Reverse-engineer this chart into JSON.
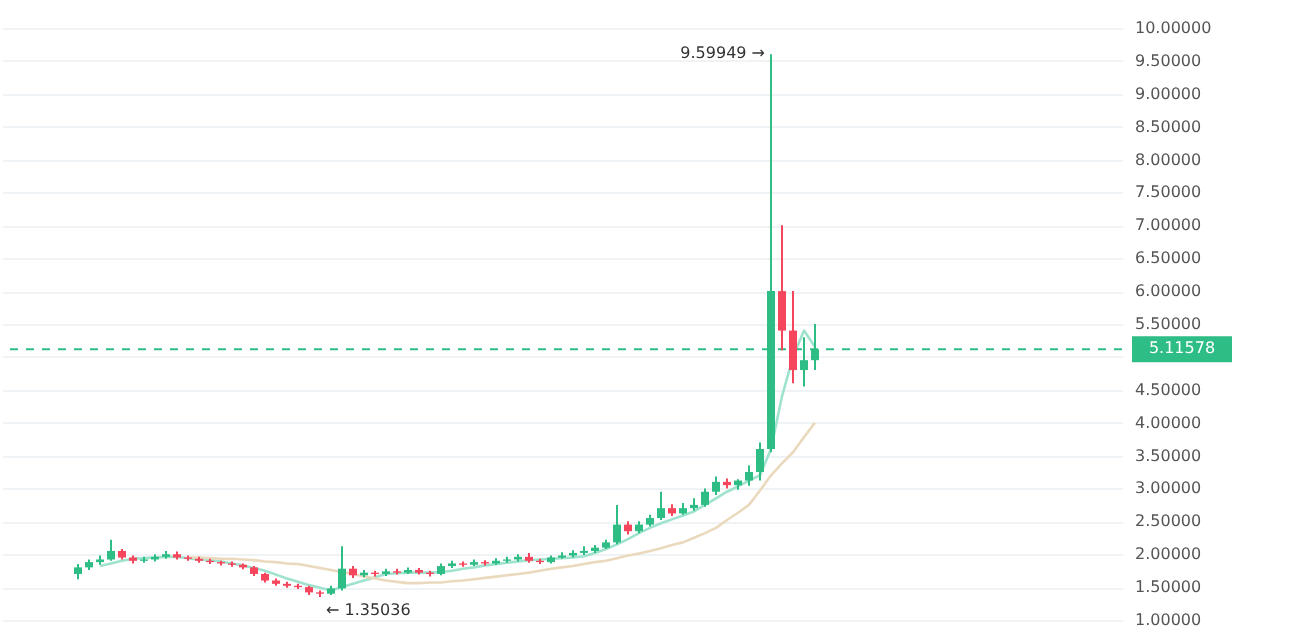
{
  "chart_data": {
    "type": "candlestick",
    "categories": [
      null,
      null,
      null,
      null,
      null,
      null,
      null,
      null,
      null,
      null,
      null,
      null,
      null,
      null,
      null,
      null,
      null,
      null,
      null,
      null,
      null,
      null,
      null,
      null,
      null,
      null,
      null,
      null,
      null,
      null,
      null,
      null,
      null,
      null,
      null,
      null,
      null,
      null,
      null,
      null,
      null,
      null,
      null,
      null,
      null,
      null,
      null,
      null,
      null,
      null,
      null,
      null,
      null,
      null,
      null,
      null,
      null,
      null,
      null,
      null,
      null,
      null,
      null,
      null,
      null,
      null,
      null,
      null
    ],
    "ohlc": [
      [
        1.7,
        1.85,
        1.62,
        1.8
      ],
      [
        1.8,
        1.92,
        1.76,
        1.88
      ],
      [
        1.88,
        1.98,
        1.84,
        1.92
      ],
      [
        1.92,
        2.22,
        1.9,
        2.05
      ],
      [
        2.05,
        2.08,
        1.92,
        1.95
      ],
      [
        1.95,
        1.98,
        1.86,
        1.9
      ],
      [
        1.9,
        1.96,
        1.87,
        1.92
      ],
      [
        1.92,
        2.0,
        1.89,
        1.96
      ],
      [
        1.96,
        2.05,
        1.93,
        2.0
      ],
      [
        2.0,
        2.04,
        1.92,
        1.95
      ],
      [
        1.95,
        1.98,
        1.9,
        1.93
      ],
      [
        1.93,
        1.96,
        1.87,
        1.9
      ],
      [
        1.9,
        1.93,
        1.85,
        1.88
      ],
      [
        1.88,
        1.9,
        1.83,
        1.86
      ],
      [
        1.86,
        1.89,
        1.81,
        1.84
      ],
      [
        1.84,
        1.86,
        1.77,
        1.8
      ],
      [
        1.8,
        1.82,
        1.67,
        1.7
      ],
      [
        1.7,
        1.72,
        1.57,
        1.6
      ],
      [
        1.6,
        1.63,
        1.52,
        1.55
      ],
      [
        1.55,
        1.58,
        1.49,
        1.52
      ],
      [
        1.52,
        1.55,
        1.47,
        1.5
      ],
      [
        1.5,
        1.52,
        1.38,
        1.42
      ],
      [
        1.42,
        1.45,
        1.35036,
        1.4
      ],
      [
        1.4,
        1.52,
        1.38,
        1.48
      ],
      [
        1.48,
        2.12,
        1.45,
        1.78
      ],
      [
        1.78,
        1.82,
        1.64,
        1.68
      ],
      [
        1.68,
        1.76,
        1.65,
        1.72
      ],
      [
        1.72,
        1.75,
        1.66,
        1.7
      ],
      [
        1.7,
        1.78,
        1.67,
        1.74
      ],
      [
        1.74,
        1.78,
        1.69,
        1.72
      ],
      [
        1.72,
        1.8,
        1.7,
        1.76
      ],
      [
        1.76,
        1.79,
        1.69,
        1.72
      ],
      [
        1.72,
        1.75,
        1.66,
        1.7
      ],
      [
        1.7,
        1.86,
        1.68,
        1.82
      ],
      [
        1.82,
        1.9,
        1.79,
        1.86
      ],
      [
        1.86,
        1.89,
        1.81,
        1.84
      ],
      [
        1.84,
        1.92,
        1.82,
        1.88
      ],
      [
        1.88,
        1.91,
        1.83,
        1.86
      ],
      [
        1.86,
        1.94,
        1.84,
        1.9
      ],
      [
        1.9,
        1.96,
        1.87,
        1.92
      ],
      [
        1.92,
        2.0,
        1.89,
        1.96
      ],
      [
        1.96,
        2.02,
        1.87,
        1.9
      ],
      [
        1.9,
        1.93,
        1.85,
        1.88
      ],
      [
        1.88,
        1.98,
        1.86,
        1.95
      ],
      [
        1.95,
        2.03,
        1.93,
        1.98
      ],
      [
        1.98,
        2.06,
        1.95,
        2.02
      ],
      [
        2.02,
        2.12,
        1.99,
        2.05
      ],
      [
        2.05,
        2.14,
        2.02,
        2.1
      ],
      [
        2.1,
        2.22,
        2.08,
        2.18
      ],
      [
        2.18,
        2.75,
        2.15,
        2.45
      ],
      [
        2.45,
        2.5,
        2.3,
        2.35
      ],
      [
        2.35,
        2.5,
        2.32,
        2.45
      ],
      [
        2.45,
        2.6,
        2.42,
        2.55
      ],
      [
        2.55,
        2.95,
        2.52,
        2.7
      ],
      [
        2.7,
        2.76,
        2.58,
        2.62
      ],
      [
        2.62,
        2.78,
        2.6,
        2.7
      ],
      [
        2.7,
        2.85,
        2.66,
        2.75
      ],
      [
        2.75,
        3.0,
        2.72,
        2.95
      ],
      [
        2.95,
        3.18,
        2.9,
        3.1
      ],
      [
        3.1,
        3.15,
        3.0,
        3.05
      ],
      [
        3.05,
        3.14,
        2.98,
        3.12
      ],
      [
        3.12,
        3.35,
        3.04,
        3.25
      ],
      [
        3.25,
        3.7,
        3.12,
        3.6
      ],
      [
        3.6,
        9.59949,
        3.55,
        6.0
      ],
      [
        6.0,
        7.0,
        5.1,
        5.4
      ],
      [
        5.4,
        6.0,
        4.6,
        4.8
      ],
      [
        4.8,
        5.3,
        4.55,
        4.95
      ],
      [
        4.95,
        5.5,
        4.8,
        5.11578
      ]
    ],
    "colors": [
      "#2ebd85",
      "#2ebd85",
      "#2ebd85",
      "#2ebd85",
      "#f6465d",
      "#f6465d",
      "#2ebd85",
      "#2ebd85",
      "#2ebd85",
      "#f6465d",
      "#f6465d",
      "#f6465d",
      "#f6465d",
      "#f6465d",
      "#f6465d",
      "#f6465d",
      "#f6465d",
      "#f6465d",
      "#f6465d",
      "#f6465d",
      "#f6465d",
      "#f6465d",
      "#f6465d",
      "#2ebd85",
      "#2ebd85",
      "#f6465d",
      "#2ebd85",
      "#f6465d",
      "#2ebd85",
      "#f6465d",
      "#2ebd85",
      "#f6465d",
      "#f6465d",
      "#2ebd85",
      "#2ebd85",
      "#f6465d",
      "#2ebd85",
      "#f6465d",
      "#2ebd85",
      "#2ebd85",
      "#2ebd85",
      "#f6465d",
      "#f6465d",
      "#2ebd85",
      "#2ebd85",
      "#2ebd85",
      "#2ebd85",
      "#2ebd85",
      "#2ebd85",
      "#2ebd85",
      "#f6465d",
      "#2ebd85",
      "#2ebd85",
      "#2ebd85",
      "#f6465d",
      "#2ebd85",
      "#2ebd85",
      "#2ebd85",
      "#2ebd85",
      "#f6465d",
      "#2ebd85",
      "#2ebd85",
      "#2ebd85",
      "#2ebd85",
      "#f6465d",
      "#f6465d",
      "#2ebd85",
      "#2ebd85"
    ],
    "series": [
      {
        "type": "line",
        "color": "#9fe3cf",
        "values": [
          null,
          null,
          1.82,
          1.86,
          1.9,
          1.93,
          1.94,
          1.95,
          1.96,
          1.96,
          1.94,
          1.92,
          1.91,
          1.89,
          1.86,
          1.83,
          1.79,
          1.75,
          1.69,
          1.63,
          1.58,
          1.53,
          1.49,
          1.45,
          1.5,
          1.55,
          1.6,
          1.65,
          1.7,
          1.71,
          1.72,
          1.72,
          1.72,
          1.73,
          1.75,
          1.78,
          1.8,
          1.83,
          1.85,
          1.87,
          1.89,
          1.91,
          1.92,
          1.93,
          1.94,
          1.95,
          1.97,
          2.02,
          2.08,
          2.15,
          2.23,
          2.32,
          2.4,
          2.47,
          2.53,
          2.59,
          2.65,
          2.75,
          2.85,
          2.95,
          3.03,
          3.12,
          3.2,
          3.6,
          4.4,
          5.0,
          5.4,
          5.15
        ]
      },
      {
        "type": "line",
        "color": "#ead9bd",
        "values": [
          null,
          null,
          null,
          null,
          null,
          null,
          null,
          null,
          null,
          null,
          1.95,
          1.95,
          1.94,
          1.93,
          1.93,
          1.92,
          1.91,
          1.89,
          1.88,
          1.86,
          1.85,
          1.82,
          1.79,
          1.76,
          1.73,
          1.7,
          1.66,
          1.63,
          1.6,
          1.58,
          1.56,
          1.56,
          1.57,
          1.57,
          1.59,
          1.6,
          1.62,
          1.64,
          1.66,
          1.68,
          1.7,
          1.72,
          1.75,
          1.78,
          1.8,
          1.82,
          1.85,
          1.88,
          1.9,
          1.94,
          1.98,
          2.01,
          2.05,
          2.09,
          2.14,
          2.18,
          2.25,
          2.32,
          2.4,
          2.52,
          2.63,
          2.75,
          2.97,
          3.2,
          3.38,
          3.55,
          3.78,
          4.0
        ]
      }
    ],
    "ylim": [
      1,
      10
    ],
    "yticks": [
      {
        "value": 1,
        "label": "1.00000"
      },
      {
        "value": 1.5,
        "label": "1.50000"
      },
      {
        "value": 2,
        "label": "2.00000"
      },
      {
        "value": 2.5,
        "label": "2.50000"
      },
      {
        "value": 3,
        "label": "3.00000"
      },
      {
        "value": 3.5,
        "label": "3.50000"
      },
      {
        "value": 4,
        "label": "4.00000"
      },
      {
        "value": 4.5,
        "label": "4.50000"
      },
      {
        "value": 5,
        "label": null
      },
      {
        "value": 5.5,
        "label": "5.50000"
      },
      {
        "value": 6,
        "label": "6.00000"
      },
      {
        "value": 6.5,
        "label": "6.50000"
      },
      {
        "value": 7,
        "label": "7.00000"
      },
      {
        "value": 7.5,
        "label": "7.50000"
      },
      {
        "value": 8,
        "label": "8.00000"
      },
      {
        "value": 8.5,
        "label": "8.50000"
      },
      {
        "value": 9,
        "label": "9.00000"
      },
      {
        "value": 9.5,
        "label": "9.50000"
      },
      {
        "value": 10,
        "label": "10.00000"
      }
    ],
    "ref_lines": [
      {
        "axis": "y",
        "value": 5.11578,
        "label": "5.11578",
        "color": "#2ebd85",
        "line_style": "dashed"
      }
    ],
    "annotations": [
      "9.59949 →",
      "← 1.35036"
    ],
    "grid": "y",
    "tick_labels": "y"
  }
}
